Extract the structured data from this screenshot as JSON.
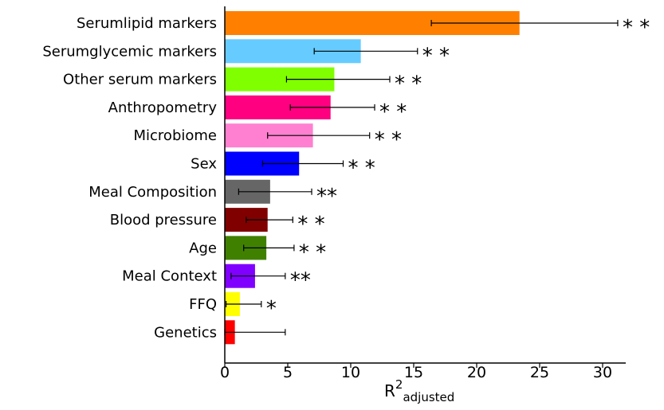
{
  "chart_data": {
    "type": "bar",
    "orientation": "horizontal",
    "categories": [
      "Serumlipid markers",
      "Serumglycemic markers",
      "Other serum markers",
      "Anthropometry",
      "Microbiome",
      "Sex",
      "Meal Composition",
      "Blood pressure",
      "Age",
      "Meal Context",
      "FFQ",
      "Genetics"
    ],
    "values": [
      23.4,
      10.8,
      8.7,
      8.4,
      7.0,
      5.9,
      3.6,
      3.4,
      3.3,
      2.4,
      1.2,
      0.8
    ],
    "error_low": [
      16.4,
      7.1,
      4.9,
      5.2,
      3.4,
      3.0,
      1.1,
      1.7,
      1.5,
      0.5,
      0.1,
      0.0
    ],
    "error_high": [
      31.2,
      15.3,
      13.1,
      11.9,
      11.5,
      9.4,
      6.9,
      5.4,
      5.5,
      4.8,
      2.9,
      4.8
    ],
    "significance": [
      "* *",
      "* *",
      "* *",
      "* *",
      "* *",
      "* *",
      "**",
      "* *",
      "* *",
      "**",
      "*",
      ""
    ],
    "colors": [
      "#ff8000",
      "#66ccff",
      "#80ff00",
      "#ff0080",
      "#ff80d0",
      "#0000ff",
      "#666666",
      "#800000",
      "#408000",
      "#8000ff",
      "#ffff00",
      "#ff0000"
    ],
    "xticks": [
      "0",
      "5",
      "10",
      "15",
      "20",
      "25",
      "30"
    ],
    "xtick_values": [
      0,
      5,
      10,
      15,
      20,
      25,
      30
    ],
    "xlim": [
      0,
      32
    ],
    "xlabel_main": "R",
    "xlabel_sup": "2",
    "xlabel_sub": "adjusted",
    "grid": false
  }
}
